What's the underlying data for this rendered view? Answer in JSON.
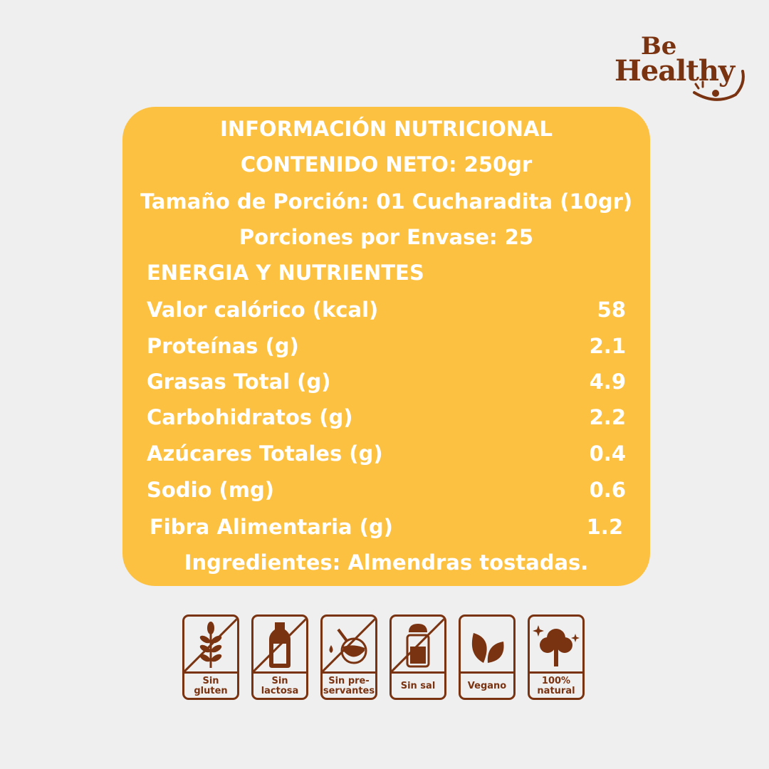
{
  "brand": {
    "logo_text": "Be Healthy",
    "line1": "Be",
    "line2": "Healthy"
  },
  "colors": {
    "background": "#efefef",
    "card": "#fdc141",
    "brand_brown": "#7a3311",
    "text": "#ffffff"
  },
  "label": {
    "title": "INFORMACIÓN NUTRICIONAL",
    "net_content": "CONTENIDO NETO: 250gr",
    "serving_size": "Tamaño de Porción: 01 Cucharadita (10gr)",
    "servings_per_container": "Porciones por Envase: 25",
    "section_header": "ENERGIA Y NUTRIENTES",
    "rows": [
      {
        "label": "Valor calórico (kcal)",
        "value": "58"
      },
      {
        "label": "Proteínas (g)",
        "value": "2.1"
      },
      {
        "label": "Grasas Total (g)",
        "value": "4.9"
      },
      {
        "label": "Carbohidratos (g)",
        "value": "2.2"
      },
      {
        "label": "Azúcares Totales (g)",
        "value": "0.4"
      },
      {
        "label": "Sodio (mg)",
        "value": "0.6"
      },
      {
        "label": "Fibra Alimentaria (g)",
        "value": "1.2"
      }
    ],
    "ingredients": "Ingredientes: Almendras tostadas."
  },
  "badges": [
    {
      "icon": "wheat-icon",
      "line1": "Sin",
      "line2": "gluten",
      "crossed": true
    },
    {
      "icon": "milk-bottle-icon",
      "line1": "Sin",
      "line2": "lactosa",
      "crossed": true
    },
    {
      "icon": "chemical-flask-icon",
      "line1": "Sin pre-",
      "line2": "servantes",
      "crossed": true
    },
    {
      "icon": "salt-shaker-icon",
      "line1": "Sin sal",
      "line2": "",
      "crossed": true
    },
    {
      "icon": "leaves-icon",
      "line1": "Vegano",
      "line2": "",
      "crossed": false
    },
    {
      "icon": "tree-icon",
      "line1": "100%",
      "line2": "natural",
      "crossed": false
    }
  ]
}
